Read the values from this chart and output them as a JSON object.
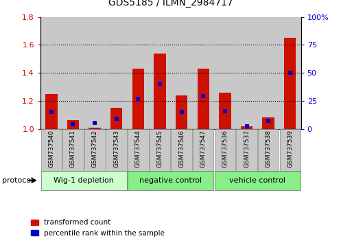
{
  "title": "GDS5185 / ILMN_2984717",
  "samples": [
    "GSM737540",
    "GSM737541",
    "GSM737542",
    "GSM737543",
    "GSM737544",
    "GSM737545",
    "GSM737546",
    "GSM737547",
    "GSM737536",
    "GSM737537",
    "GSM737538",
    "GSM737539"
  ],
  "red_values": [
    1.25,
    1.06,
    1.01,
    1.15,
    1.43,
    1.54,
    1.24,
    1.43,
    1.26,
    1.02,
    1.08,
    1.65
  ],
  "blue_values_pct": [
    15,
    4,
    5,
    9,
    27,
    40,
    15,
    29,
    16,
    2,
    7,
    50
  ],
  "groups": [
    {
      "label": "Wig-1 depletion",
      "start": 0,
      "end": 4,
      "color": "#ccffcc"
    },
    {
      "label": "negative control",
      "start": 4,
      "end": 8,
      "color": "#88ee88"
    },
    {
      "label": "vehicle control",
      "start": 8,
      "end": 12,
      "color": "#88ee88"
    }
  ],
  "ylim_left": [
    1.0,
    1.8
  ],
  "ylim_right": [
    0,
    100
  ],
  "left_ticks": [
    1.0,
    1.2,
    1.4,
    1.6,
    1.8
  ],
  "right_ticks": [
    0,
    25,
    50,
    75,
    100
  ],
  "left_tick_color": "#cc0000",
  "right_tick_color": "#0000cc",
  "bar_color_red": "#cc1100",
  "bar_color_blue": "#0000cc",
  "legend_red": "transformed count",
  "legend_blue": "percentile rank within the sample",
  "protocol_label": "protocol",
  "bar_bg_color": "#c8c8c8",
  "grid_color": "#000000",
  "dotted_lines": [
    1.2,
    1.4,
    1.6
  ]
}
